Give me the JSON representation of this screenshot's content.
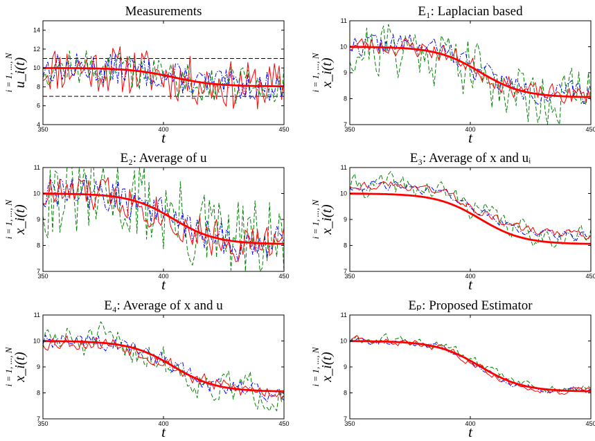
{
  "colors": {
    "red": "#ff0000",
    "green": "#008000",
    "blue": "#0000ff",
    "black": "#000000"
  },
  "chart_data": [
    {
      "type": "line",
      "title": "Measurements",
      "xlabel": "t",
      "ylabel": "u_i(t)",
      "ylabel_sub": "i = 1, ..., N",
      "xlim": [
        350,
        450
      ],
      "ylim": [
        4,
        15
      ],
      "x_ticks": [
        350,
        400,
        450
      ],
      "y_ticks": [
        4,
        6,
        8,
        10,
        12,
        14
      ],
      "reference_lines": [
        7,
        11
      ],
      "series": [
        {
          "values": [],
          "color": "red",
          "style": "solid"
        }
      ]
    },
    {
      "type": "line",
      "title": "E₁: Laplacian based",
      "xlabel": "t",
      "ylabel": "x_i(t)",
      "ylabel_sub": "i = 1, ..., N",
      "xlim": [
        350,
        450
      ],
      "ylim": [
        7,
        11
      ],
      "x_ticks": [
        350,
        400,
        450
      ],
      "y_ticks": [
        7,
        8,
        9,
        10,
        11
      ],
      "series": []
    },
    {
      "type": "line",
      "title": "E₂: Average of u",
      "xlabel": "t",
      "ylabel": "x_i(t)",
      "ylabel_sub": "i = 1, ..., N",
      "xlim": [
        350,
        450
      ],
      "ylim": [
        7,
        11
      ],
      "x_ticks": [
        350,
        400,
        450
      ],
      "y_ticks": [
        7,
        8,
        9,
        10,
        11
      ],
      "series": []
    },
    {
      "type": "line",
      "title": "E₃: Average of x and uᵢ",
      "xlabel": "t",
      "ylabel": "x_i(t)",
      "ylabel_sub": "i = 1, ..., N",
      "xlim": [
        350,
        450
      ],
      "ylim": [
        7,
        11
      ],
      "x_ticks": [
        350,
        400,
        450
      ],
      "y_ticks": [
        7,
        8,
        9,
        10,
        11
      ],
      "series": []
    },
    {
      "type": "line",
      "title": "E₄: Average of x and u",
      "xlabel": "t",
      "ylabel": "x_i(t)",
      "ylabel_sub": "i = 1, ..., N",
      "xlim": [
        350,
        450
      ],
      "ylim": [
        7,
        11
      ],
      "x_ticks": [
        350,
        400,
        450
      ],
      "y_ticks": [
        7,
        8,
        9,
        10,
        11
      ],
      "series": []
    },
    {
      "type": "line",
      "title": "Eₚ: Proposed Estimator",
      "xlabel": "t",
      "ylabel": "x_i(t)",
      "ylabel_sub": "i = 1, ..., N",
      "xlim": [
        350,
        450
      ],
      "ylim": [
        7,
        11
      ],
      "x_ticks": [
        350,
        400,
        450
      ],
      "y_ticks": [
        7,
        8,
        9,
        10,
        11
      ],
      "series": []
    }
  ]
}
